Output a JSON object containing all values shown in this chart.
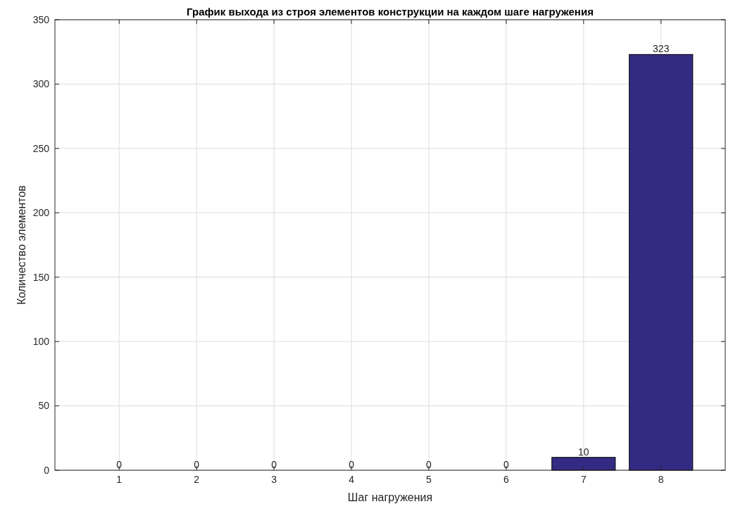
{
  "chart_data": {
    "type": "bar",
    "title": "График выхода из строя элементов конструкции на каждом шаге нагружения",
    "xlabel": "Шаг нагружения",
    "ylabel": "Количество элементов",
    "categories": [
      "1",
      "2",
      "3",
      "4",
      "5",
      "6",
      "7",
      "8"
    ],
    "values": [
      0,
      0,
      0,
      0,
      0,
      0,
      10,
      323
    ],
    "color": "#332b83",
    "ylim": [
      0,
      350
    ],
    "yticks": [
      0,
      50,
      100,
      150,
      200,
      250,
      300,
      350
    ],
    "grid": true,
    "data_labels": true
  }
}
